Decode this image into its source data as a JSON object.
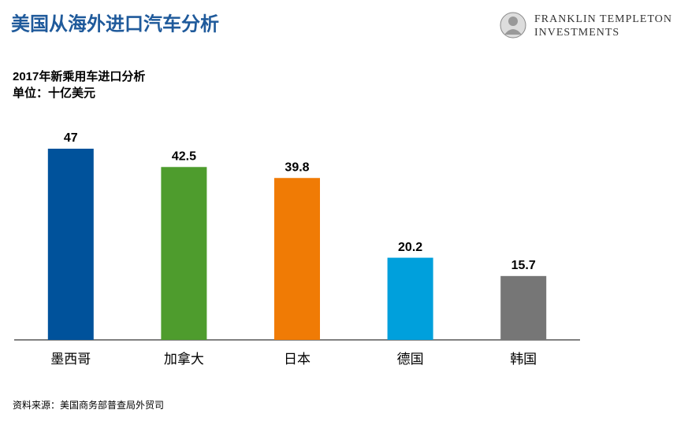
{
  "chart_data": {
    "type": "bar",
    "header_title": "美国从海外进口汽车分析",
    "brand_line1": "FRANKLIN TEMPLETON",
    "brand_line2": "INVESTMENTS",
    "title": "2017年新乘用车进口分析",
    "subtitle": "单位：十亿美元",
    "categories": [
      "墨西哥",
      "加拿大",
      "日本",
      "德国",
      "韩国"
    ],
    "values": [
      47,
      42.5,
      39.8,
      20.2,
      15.7
    ],
    "colors": [
      "#00529b",
      "#4e9c2d",
      "#f07b05",
      "#00a0dc",
      "#767676"
    ],
    "ylim": [
      0,
      47
    ],
    "source": "资料来源：美国商务部普查局外贸司"
  }
}
